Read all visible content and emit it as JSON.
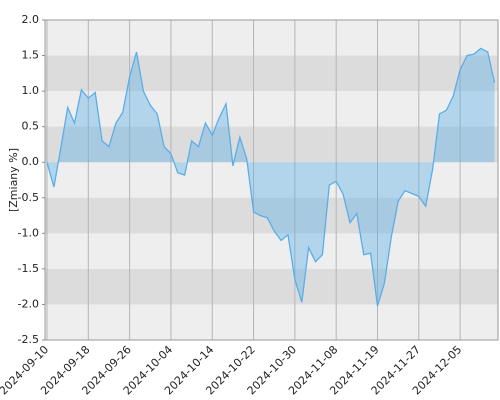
{
  "chart_data": {
    "type": "area",
    "y_label": "[Zmiany %]",
    "categories": [
      "2024-09-10",
      null,
      null,
      null,
      null,
      null,
      "2024-09-18",
      null,
      null,
      null,
      null,
      null,
      "2024-09-26",
      null,
      null,
      null,
      null,
      null,
      "2024-10-04",
      null,
      null,
      null,
      null,
      null,
      "2024-10-14",
      null,
      null,
      null,
      null,
      null,
      "2024-10-22",
      null,
      null,
      null,
      null,
      null,
      "2024-10-30",
      null,
      null,
      null,
      null,
      null,
      "2024-11-08",
      null,
      null,
      null,
      null,
      null,
      "2024-11-19",
      null,
      null,
      null,
      null,
      null,
      "2024-11-27",
      null,
      null,
      null,
      null,
      null,
      "2024-12-05",
      null,
      null,
      null,
      null,
      null
    ],
    "values": [
      0.0,
      -0.35,
      0.2,
      0.77,
      0.55,
      1.02,
      0.9,
      0.98,
      0.3,
      0.22,
      0.55,
      0.7,
      1.2,
      1.55,
      1.0,
      0.8,
      0.68,
      0.22,
      0.12,
      -0.15,
      -0.18,
      0.3,
      0.22,
      0.55,
      0.38,
      0.62,
      0.82,
      -0.05,
      0.35,
      0.05,
      -0.7,
      -0.75,
      -0.78,
      -0.97,
      -1.1,
      -1.02,
      -1.65,
      -1.97,
      -1.2,
      -1.4,
      -1.3,
      -0.32,
      -0.27,
      -0.45,
      -0.85,
      -0.72,
      -1.3,
      -1.28,
      -2.02,
      -1.7,
      -1.05,
      -0.55,
      -0.4,
      -0.44,
      -0.48,
      -0.62,
      -0.1,
      0.68,
      0.73,
      0.93,
      1.3,
      1.5,
      1.52,
      1.6,
      1.55,
      1.12
    ],
    "color": "#5aaee8",
    "ylim": [
      -2.5,
      2.0
    ],
    "yticks": [
      {
        "value": 2,
        "label": "2.0"
      },
      1.5,
      {
        "value": 1,
        "label": "1.0"
      },
      0.5,
      {
        "value": 0,
        "label": "0.0"
      },
      -0.5,
      {
        "value": -1,
        "label": "-1.0"
      },
      -1.5,
      {
        "value": -2,
        "label": "-2.0"
      },
      -2.5
    ],
    "grid": true
  }
}
